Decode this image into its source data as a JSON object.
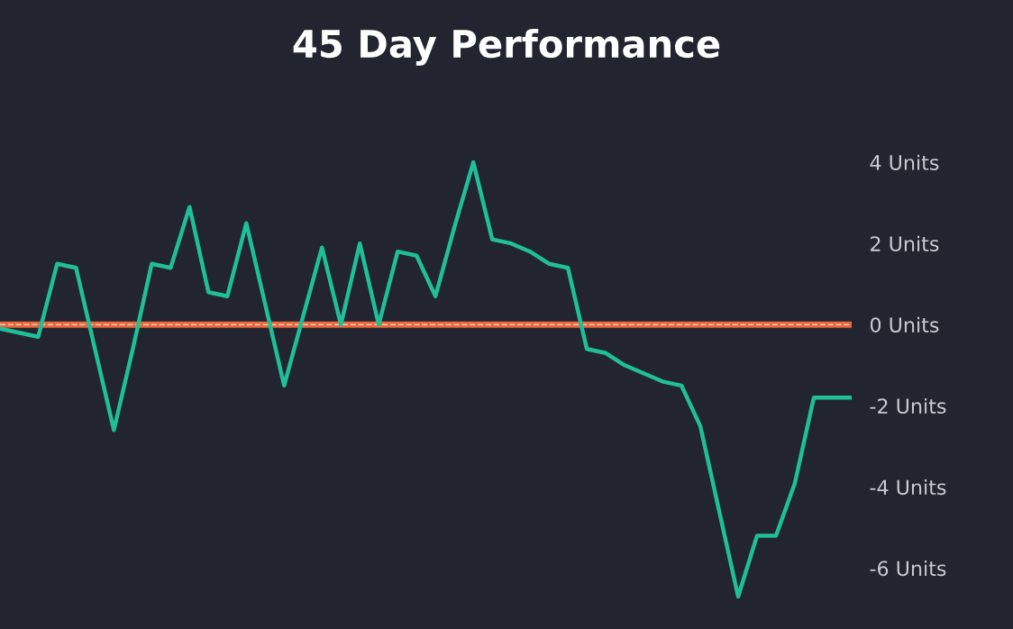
{
  "chart_data": {
    "type": "line",
    "title": "45 Day Performance",
    "categories": [
      null,
      null,
      null,
      null,
      null,
      null,
      null,
      null,
      null,
      null,
      null,
      null,
      null,
      null,
      null,
      null,
      null,
      null,
      null,
      null,
      null,
      null,
      null,
      null,
      null,
      null,
      null,
      null,
      null,
      null,
      null,
      null,
      null,
      null,
      null,
      null,
      null,
      null,
      null,
      null,
      null,
      null,
      null,
      null,
      null,
      null
    ],
    "series": [
      {
        "color": "#1fbf98",
        "values": [
          -0.1,
          -0.2,
          -0.3,
          1.5,
          1.4,
          -0.6,
          -2.6,
          -0.6,
          1.5,
          1.4,
          2.9,
          0.8,
          0.7,
          2.5,
          0.5,
          -1.5,
          0.2,
          1.9,
          0.0,
          2.0,
          0.0,
          1.8,
          1.7,
          0.7,
          2.4,
          4.0,
          2.1,
          2.0,
          1.8,
          1.5,
          1.4,
          -0.6,
          -0.7,
          -1.0,
          -1.2,
          -1.4,
          -1.5,
          -2.5,
          -4.6,
          -6.7,
          -5.2,
          -5.2,
          -3.9,
          -1.8,
          -1.8,
          -1.8
        ]
      }
    ],
    "ylim": [
      -7.5,
      8
    ],
    "yticks": [
      {
        "value": 4,
        "label": "4 Units"
      },
      {
        "value": 2,
        "label": "2 Units"
      },
      {
        "value": 0,
        "label": "0 Units"
      },
      {
        "value": -2,
        "label": "-2 Units"
      },
      {
        "value": -4,
        "label": "-4 Units"
      },
      {
        "value": -6,
        "label": "-6 Units"
      }
    ],
    "tick_labels": "y",
    "grid": false,
    "legend": false,
    "marker": "none",
    "line_style": "solid",
    "ref_lines": [
      {
        "axis": "y",
        "value": 0,
        "color": "#e8663d",
        "line_style": "solid"
      },
      {
        "axis": "y",
        "value": 0,
        "color": "#f3cdb0",
        "line_style": "dashed"
      }
    ]
  }
}
